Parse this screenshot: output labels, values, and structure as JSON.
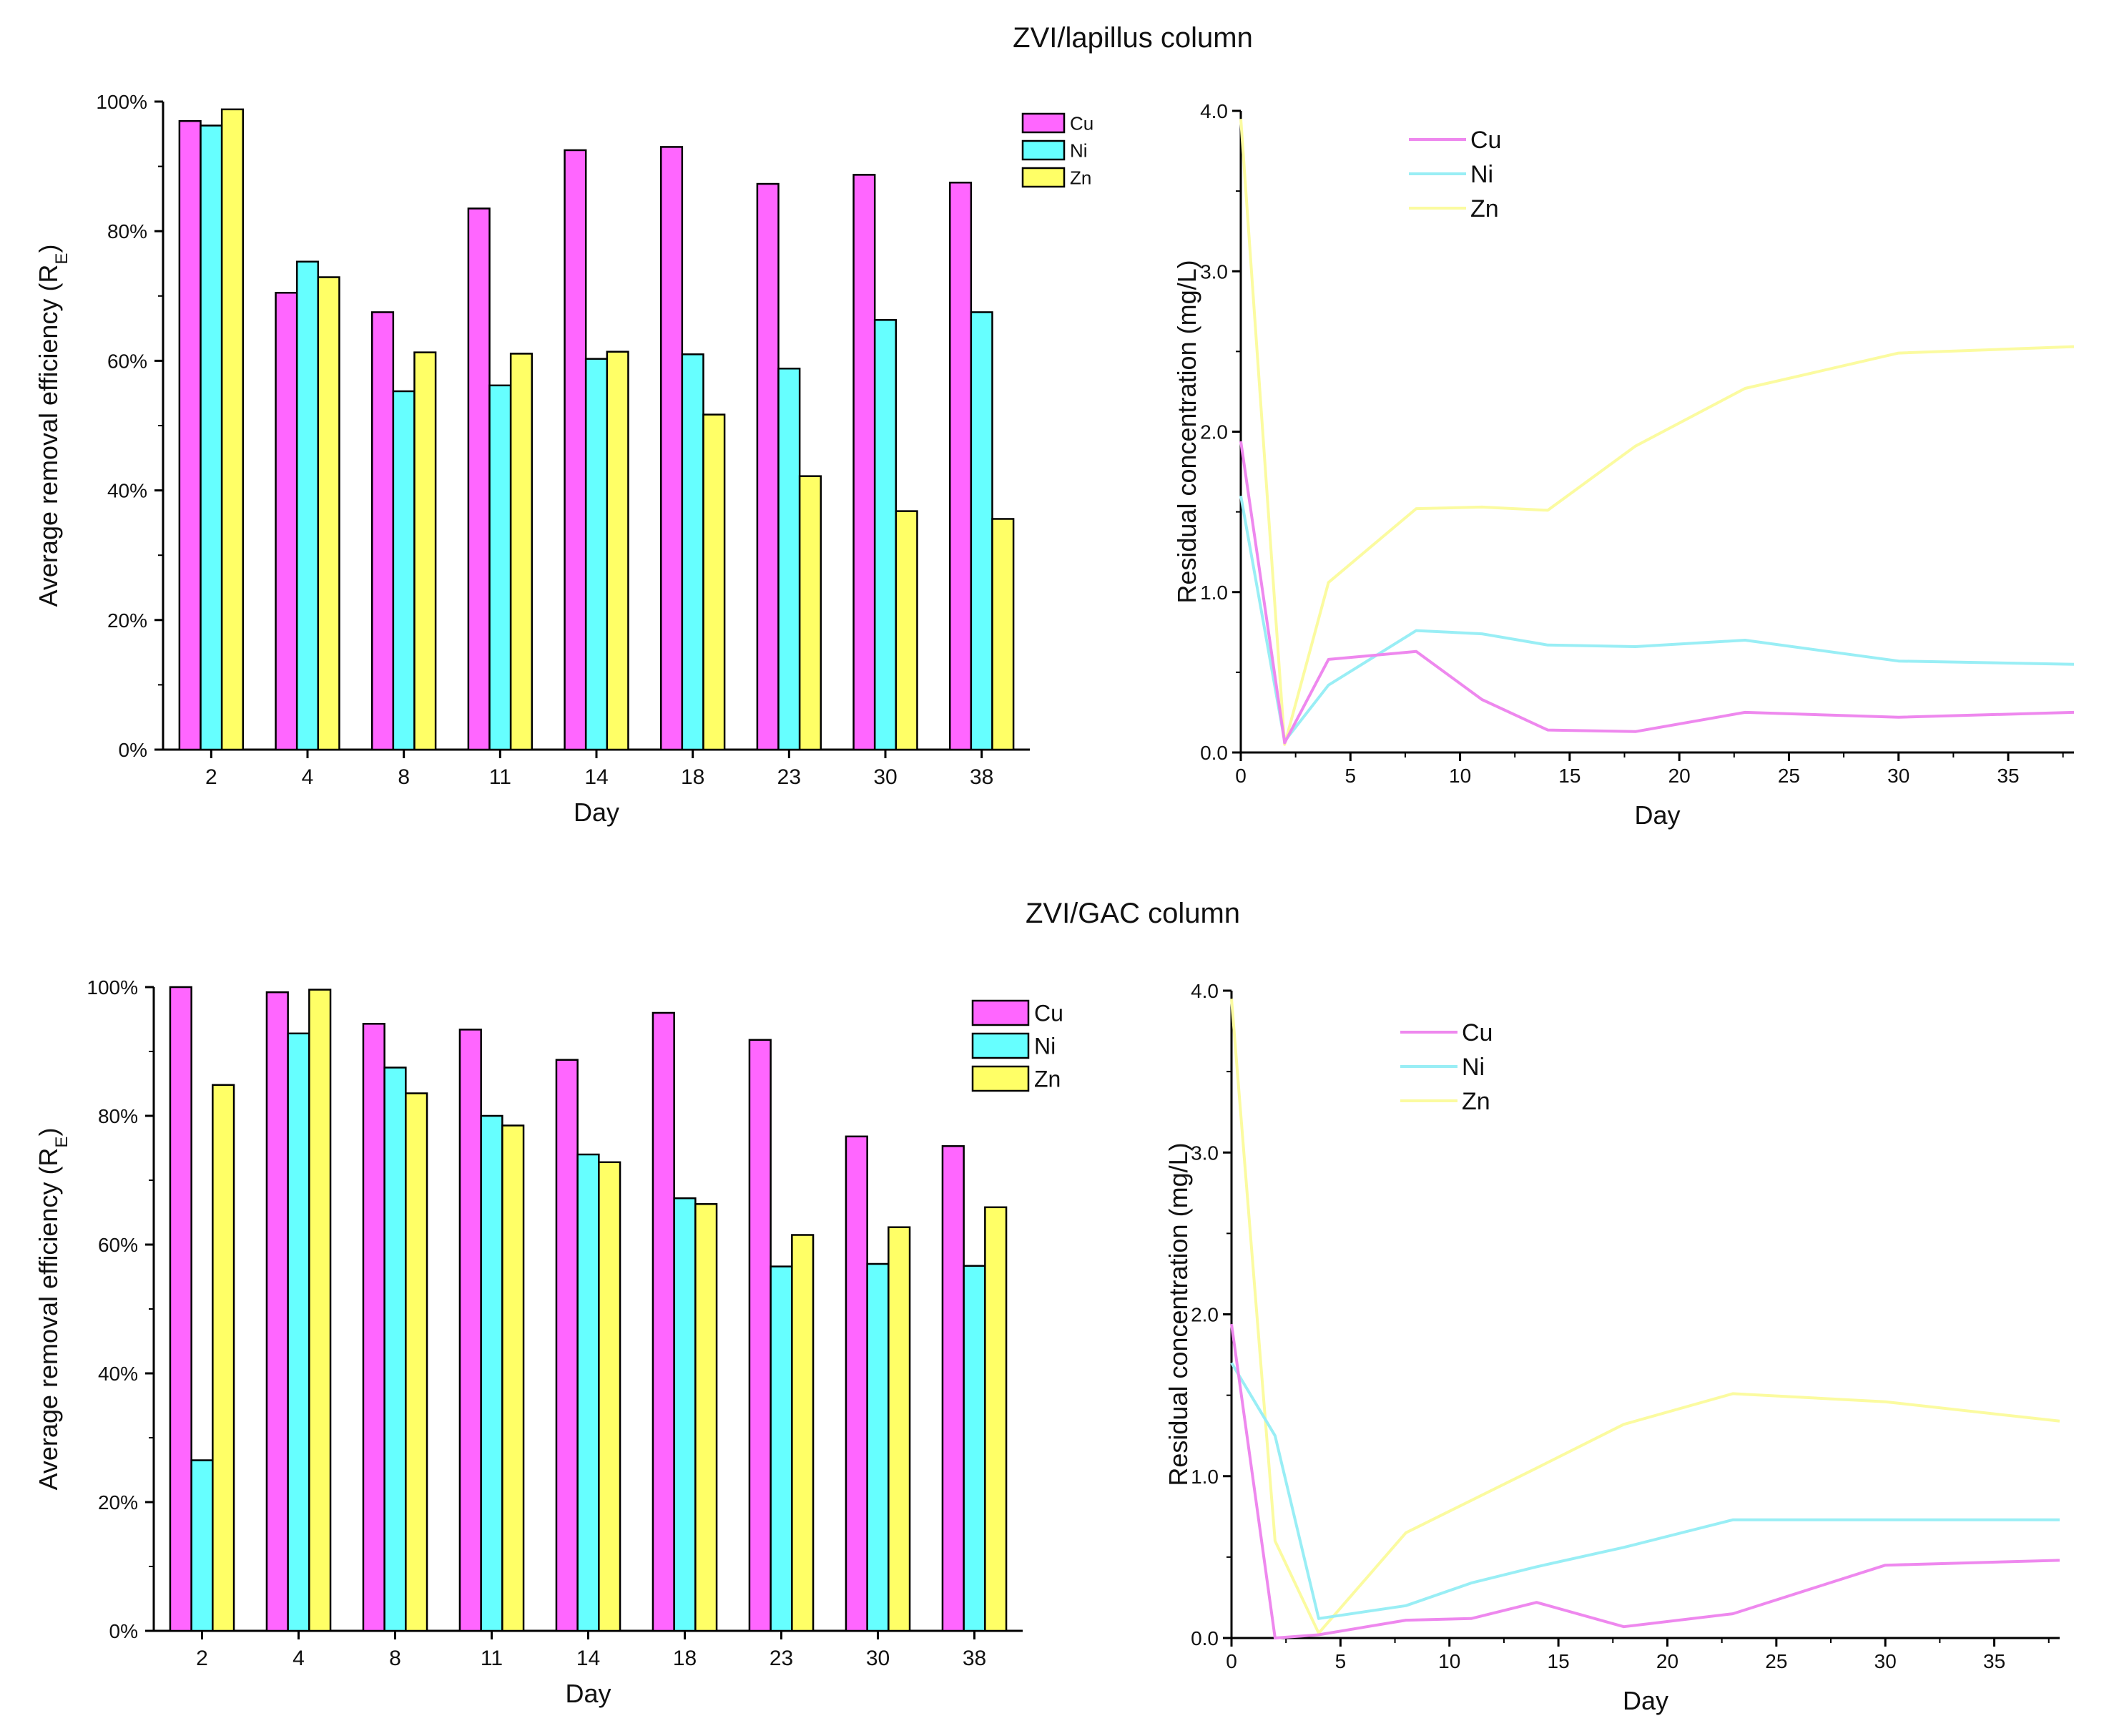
{
  "colors": {
    "Cu": "#ff66ff",
    "Ni": "#66ffff",
    "Zn": "#ffff66",
    "line_Cu": "#ee88ee",
    "line_Ni": "#99eef5",
    "line_Zn": "#fbfba0"
  },
  "sections": [
    {
      "title": "ZVI/lapillus column"
    },
    {
      "title": "ZVI/GAC column"
    }
  ],
  "chart_data": [
    {
      "type": "bar",
      "title": "ZVI/lapillus column",
      "xlabel": "Day",
      "ylabel": "Average removal efficiency (R",
      "ylabel_sub": "E",
      "ylabel_end": ")",
      "categories": [
        "2",
        "4",
        "8",
        "11",
        "14",
        "18",
        "23",
        "30",
        "38"
      ],
      "series": [
        {
          "name": "Cu",
          "values": [
            97,
            70.5,
            67.5,
            83.5,
            92.5,
            93,
            87.3,
            88.7,
            87.5
          ]
        },
        {
          "name": "Ni",
          "values": [
            96.3,
            75.3,
            55.3,
            56.2,
            60.3,
            61,
            58.8,
            66.3,
            67.5
          ]
        },
        {
          "name": "Zn",
          "values": [
            98.8,
            72.9,
            61.3,
            61.1,
            61.4,
            51.7,
            42.2,
            36.8,
            35.6
          ]
        }
      ],
      "ylim": [
        0,
        100
      ],
      "yticks": [
        "0%",
        "20%",
        "40%",
        "60%",
        "80%",
        "100%"
      ],
      "legend": "top-right"
    },
    {
      "type": "line",
      "title": "ZVI/lapillus column",
      "xlabel": "Day",
      "ylabel": "Residual concentration (mg/L)",
      "x": [
        0,
        2,
        4,
        8,
        11,
        14,
        18,
        23,
        30,
        38
      ],
      "series": [
        {
          "name": "Cu",
          "values": [
            1.94,
            0.06,
            0.58,
            0.63,
            0.33,
            0.14,
            0.13,
            0.25,
            0.22,
            0.25
          ]
        },
        {
          "name": "Ni",
          "values": [
            1.6,
            0.07,
            0.42,
            0.76,
            0.74,
            0.67,
            0.66,
            0.7,
            0.57,
            0.55
          ]
        },
        {
          "name": "Zn",
          "values": [
            3.95,
            0.05,
            1.06,
            1.52,
            1.53,
            1.51,
            1.91,
            2.27,
            2.49,
            2.53
          ]
        }
      ],
      "xlim": [
        0,
        38
      ],
      "ylim": [
        0,
        4
      ],
      "xticks": [
        "0",
        "5",
        "10",
        "15",
        "20",
        "25",
        "30",
        "35"
      ],
      "yticks": [
        "0.0",
        "1.0",
        "2.0",
        "3.0",
        "4.0"
      ],
      "legend": "top-left"
    },
    {
      "type": "bar",
      "title": "ZVI/GAC column",
      "xlabel": "Day",
      "ylabel": "Average removal efficiency (R",
      "ylabel_sub": "E",
      "ylabel_end": ")",
      "categories": [
        "2",
        "4",
        "8",
        "11",
        "14",
        "18",
        "23",
        "30",
        "38"
      ],
      "series": [
        {
          "name": "Cu",
          "values": [
            100,
            99.2,
            94.3,
            93.4,
            88.7,
            96,
            91.8,
            76.8,
            75.3
          ]
        },
        {
          "name": "Ni",
          "values": [
            26.5,
            92.8,
            87.5,
            80,
            74,
            67.2,
            56.6,
            57,
            56.7
          ]
        },
        {
          "name": "Zn",
          "values": [
            84.8,
            99.6,
            83.5,
            78.5,
            72.8,
            66.3,
            61.5,
            62.7,
            65.8
          ]
        }
      ],
      "ylim": [
        0,
        100
      ],
      "yticks": [
        "0%",
        "20%",
        "40%",
        "60%",
        "80%",
        "100%"
      ],
      "legend": "top-right"
    },
    {
      "type": "line",
      "title": "ZVI/GAC column",
      "xlabel": "Day",
      "ylabel": "Residual concentration (mg/L)",
      "x": [
        0,
        2,
        4,
        8,
        11,
        14,
        18,
        23,
        30,
        38
      ],
      "series": [
        {
          "name": "Cu",
          "values": [
            1.94,
            0.0,
            0.02,
            0.11,
            0.12,
            0.22,
            0.07,
            0.15,
            0.45,
            0.48
          ]
        },
        {
          "name": "Ni",
          "values": [
            1.7,
            1.25,
            0.12,
            0.2,
            0.34,
            0.44,
            0.56,
            0.73,
            0.73,
            0.73
          ]
        },
        {
          "name": "Zn",
          "values": [
            3.95,
            0.6,
            0.03,
            0.65,
            0.85,
            1.05,
            1.32,
            1.51,
            1.46,
            1.34
          ]
        }
      ],
      "xlim": [
        0,
        38
      ],
      "ylim": [
        0,
        4
      ],
      "xticks": [
        "0",
        "5",
        "10",
        "15",
        "20",
        "25",
        "30",
        "35"
      ],
      "yticks": [
        "0.0",
        "1.0",
        "2.0",
        "3.0",
        "4.0"
      ],
      "legend": "top-left"
    }
  ]
}
